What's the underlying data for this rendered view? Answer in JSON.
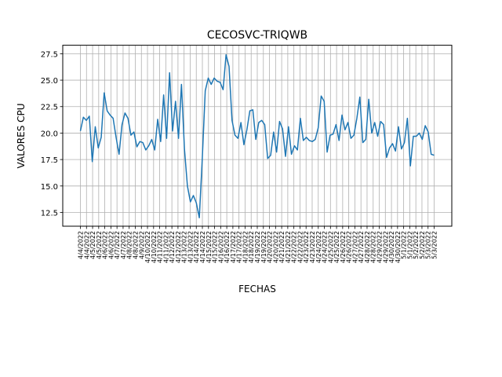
{
  "chart_data": {
    "type": "line",
    "title": "CECOSVC-TRIQWB",
    "xlabel": "FECHAS",
    "ylabel": "VALORES CPU",
    "ylim": [
      11.2,
      28.3
    ],
    "yticks": [
      12.5,
      15.0,
      17.5,
      20.0,
      22.5,
      25.0,
      27.5
    ],
    "ytick_labels": [
      "12.5",
      "15.0",
      "17.5",
      "20.0",
      "22.5",
      "25.0",
      "27.5"
    ],
    "grid": true,
    "line_color": "#1f77b4",
    "xtick_labels": [
      "4/4/2022",
      "4/4/2022",
      "4/5/2022",
      "4/5/2022",
      "4/6/2022",
      "4/6/2022",
      "4/7/2022",
      "4/7/2022",
      "4/8/2022",
      "4/8/2022",
      "4/9/2022",
      "4/10/2022",
      "4/10/2022",
      "4/11/2022",
      "4/11/2022",
      "4/12/2022",
      "4/12/2022",
      "4/13/2022",
      "4/13/2022",
      "4/14/2022",
      "4/14/2022",
      "4/15/2022",
      "4/15/2022",
      "4/16/2022",
      "4/16/2022",
      "4/17/2022",
      "4/17/2022",
      "4/18/2022",
      "4/18/2022",
      "4/19/2022",
      "4/19/2022",
      "4/20/2022",
      "4/20/2022",
      "4/21/2022",
      "4/21/2022",
      "4/22/2022",
      "4/22/2022",
      "4/23/2022",
      "4/23/2022",
      "4/24/2022",
      "4/24/2022",
      "4/25/2022",
      "4/25/2022",
      "4/26/2022",
      "4/26/2022",
      "4/27/2022",
      "4/27/2022",
      "4/28/2022",
      "4/28/2022",
      "4/29/2022",
      "4/29/2022",
      "4/30/2022",
      "4/30/2022",
      "5/1/2022",
      "5/1/2022",
      "5/2/2022",
      "5/2/2022",
      "5/3/2022",
      "5/3/2022"
    ],
    "values": [
      20.2,
      21.5,
      21.2,
      21.6,
      17.3,
      20.6,
      18.6,
      19.6,
      23.8,
      22.1,
      21.7,
      21.4,
      19.6,
      18.0,
      20.8,
      21.9,
      21.4,
      19.8,
      20.1,
      18.7,
      19.2,
      19.1,
      18.4,
      18.8,
      19.4,
      18.4,
      21.3,
      19.2,
      23.6,
      19.5,
      25.7,
      20.2,
      23.0,
      19.5,
      24.6,
      18.5,
      15.0,
      13.5,
      14.1,
      13.4,
      12.0,
      17.6,
      24.0,
      25.2,
      24.6,
      25.2,
      24.9,
      24.8,
      24.1,
      27.4,
      26.3,
      21.2,
      19.8,
      19.5,
      21.0,
      18.9,
      20.3,
      22.1,
      22.2,
      19.4,
      21.0,
      21.2,
      20.8,
      17.6,
      17.9,
      20.1,
      18.2,
      21.1,
      20.4,
      17.8,
      20.6,
      18.0,
      18.8,
      18.4,
      21.4,
      19.3,
      19.6,
      19.3,
      19.2,
      19.4,
      20.5,
      23.5,
      23.0,
      18.2,
      19.8,
      19.9,
      20.8,
      19.3,
      21.7,
      20.3,
      21.0,
      19.5,
      19.8,
      21.4,
      23.4,
      19.1,
      19.4,
      23.2,
      20.0,
      21.0,
      19.7,
      21.1,
      20.8,
      17.7,
      18.6,
      19.0,
      18.3,
      20.6,
      18.5,
      19.1,
      21.4,
      16.9,
      19.7,
      19.7,
      20.0,
      19.4,
      20.7,
      20.1,
      18.0,
      17.9
    ]
  }
}
